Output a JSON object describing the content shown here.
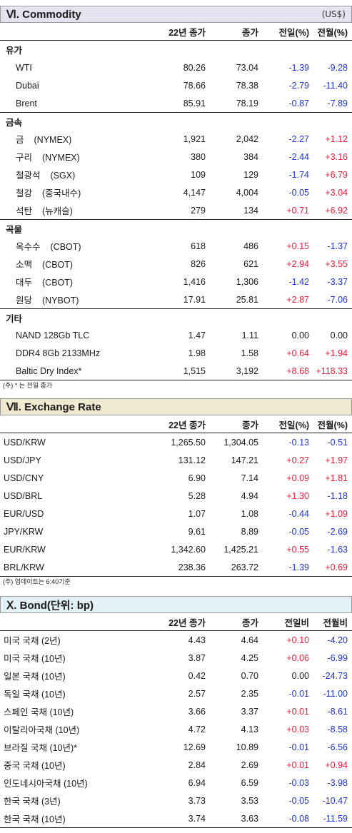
{
  "commodity": {
    "title": "Ⅵ. Commodity",
    "unit": "(US$)",
    "columns": [
      "22년 종가",
      "종가",
      "전일(%)",
      "전월(%)"
    ],
    "groups": [
      {
        "name": "유가",
        "rows": [
          {
            "name": "WTI",
            "sub": "",
            "v1": "80.26",
            "v2": "73.04",
            "v3": "-1.39",
            "v4": "-9.28"
          },
          {
            "name": "Dubai",
            "sub": "",
            "v1": "78.66",
            "v2": "78.38",
            "v3": "-2.79",
            "v4": "-11.40"
          },
          {
            "name": "Brent",
            "sub": "",
            "v1": "85.91",
            "v2": "78.19",
            "v3": "-0.87",
            "v4": "-7.89"
          }
        ]
      },
      {
        "name": "금속",
        "rows": [
          {
            "name": "금",
            "sub": "(NYMEX)",
            "v1": "1,921",
            "v2": "2,042",
            "v3": "-2.27",
            "v4": "+1.12"
          },
          {
            "name": "구리",
            "sub": "(NYMEX)",
            "v1": "380",
            "v2": "384",
            "v3": "-2.44",
            "v4": "+3.16"
          },
          {
            "name": "철광석",
            "sub": "(SGX)",
            "v1": "109",
            "v2": "129",
            "v3": "-1.74",
            "v4": "+6.79"
          },
          {
            "name": "철강",
            "sub": "(중국내수)",
            "v1": "4,147",
            "v2": "4,004",
            "v3": "-0.05",
            "v4": "+3.04"
          },
          {
            "name": "석탄",
            "sub": "(뉴캐슬)",
            "v1": "279",
            "v2": "134",
            "v3": "+0.71",
            "v4": "+6.92"
          }
        ]
      },
      {
        "name": "곡물",
        "rows": [
          {
            "name": "옥수수",
            "sub": "(CBOT)",
            "v1": "618",
            "v2": "486",
            "v3": "+0.15",
            "v4": "-1.37"
          },
          {
            "name": "소맥",
            "sub": "(CBOT)",
            "v1": "826",
            "v2": "621",
            "v3": "+2.94",
            "v4": "+3.55"
          },
          {
            "name": "대두",
            "sub": "(CBOT)",
            "v1": "1,416",
            "v2": "1,306",
            "v3": "-1.42",
            "v4": "-3.37"
          },
          {
            "name": "원당",
            "sub": "(NYBOT)",
            "v1": "17.91",
            "v2": "25.81",
            "v3": "+2.87",
            "v4": "-7.06"
          }
        ]
      },
      {
        "name": "기타",
        "rows": [
          {
            "name": "NAND 128Gb TLC",
            "sub": "",
            "v1": "1.47",
            "v2": "1.11",
            "v3": "0.00",
            "v4": "0.00"
          },
          {
            "name": "DDR4 8Gb 2133MHz",
            "sub": "",
            "v1": "1.98",
            "v2": "1.58",
            "v3": "+0.64",
            "v4": "+1.94"
          },
          {
            "name": "Baltic Dry Index*",
            "sub": "",
            "v1": "1,515",
            "v2": "3,192",
            "v3": "+8.68",
            "v4": "+118.33"
          }
        ]
      }
    ],
    "note": "(주) * 는 전일 종가"
  },
  "exchange": {
    "title": "Ⅶ. Exchange Rate",
    "columns": [
      "22년 종가",
      "종가",
      "전일(%)",
      "전월(%)"
    ],
    "rows": [
      {
        "name": "USD/KRW",
        "v1": "1,265.50",
        "v2": "1,304.05",
        "v3": "-0.13",
        "v4": "-0.51"
      },
      {
        "name": "USD/JPY",
        "v1": "131.12",
        "v2": "147.21",
        "v3": "+0.27",
        "v4": "+1.97"
      },
      {
        "name": "USD/CNY",
        "v1": "6.90",
        "v2": "7.14",
        "v3": "+0.09",
        "v4": "+1.81"
      },
      {
        "name": "USD/BRL",
        "v1": "5.28",
        "v2": "4.94",
        "v3": "+1.30",
        "v4": "-1.18"
      },
      {
        "name": "EUR/USD",
        "v1": "1.07",
        "v2": "1.08",
        "v3": "-0.44",
        "v4": "+1.09"
      },
      {
        "name": "JPY/KRW",
        "v1": "9.61",
        "v2": "8.89",
        "v3": "-0.05",
        "v4": "-2.69"
      },
      {
        "name": "EUR/KRW",
        "v1": "1,342.60",
        "v2": "1,425.21",
        "v3": "+0.55",
        "v4": "-1.63"
      },
      {
        "name": "BRL/KRW",
        "v1": "238.36",
        "v2": "263.72",
        "v3": "-1.39",
        "v4": "+0.69"
      }
    ],
    "note": "(주) 업데이트는 6:40기준"
  },
  "bond": {
    "title": "Ⅹ. Bond(단위: bp)",
    "columns": [
      "22년 종가",
      "종가",
      "전일비",
      "전월비"
    ],
    "rows": [
      {
        "name": "미국 국채 (2년)",
        "v1": "4.43",
        "v2": "4.64",
        "v3": "+0.10",
        "v4": "-4.20"
      },
      {
        "name": "미국 국채 (10년)",
        "v1": "3.87",
        "v2": "4.25",
        "v3": "+0.06",
        "v4": "-6.99"
      },
      {
        "name": "일본 국채 (10년)",
        "v1": "0.42",
        "v2": "0.70",
        "v3": "0.00",
        "v4": "-24.73"
      },
      {
        "name": "독일 국채 (10년)",
        "v1": "2.57",
        "v2": "2.35",
        "v3": "-0.01",
        "v4": "-11.00"
      },
      {
        "name": "스페인 국채 (10년)",
        "v1": "3.66",
        "v2": "3.37",
        "v3": "+0.01",
        "v4": "-8.61"
      },
      {
        "name": "이탈리아국채 (10년)",
        "v1": "4.72",
        "v2": "4.13",
        "v3": "+0.03",
        "v4": "-8.58"
      },
      {
        "name": "브라질 국채 (10년)*",
        "v1": "12.69",
        "v2": "10.89",
        "v3": "-0.01",
        "v4": "-6.56"
      },
      {
        "name": "중국 국채 (10년)",
        "v1": "2.84",
        "v2": "2.69",
        "v3": "+0.01",
        "v4": "+0.94"
      },
      {
        "name": "인도네시아국채 (10년)",
        "v1": "6.94",
        "v2": "6.59",
        "v3": "-0.03",
        "v4": "-3.98"
      },
      {
        "name": "한국 국채 (3년)",
        "v1": "3.73",
        "v2": "3.53",
        "v3": "-0.05",
        "v4": "-10.47"
      },
      {
        "name": "한국 국채 (10년)",
        "v1": "3.74",
        "v2": "3.63",
        "v3": "-0.08",
        "v4": "-11.59"
      }
    ]
  },
  "colors": {
    "positive": "#ee1c3a",
    "negative": "#1f33d6",
    "commodity_header": "#e4e1f0",
    "exchange_header": "#eee9cf",
    "bond_header": "#e1f1f6"
  }
}
